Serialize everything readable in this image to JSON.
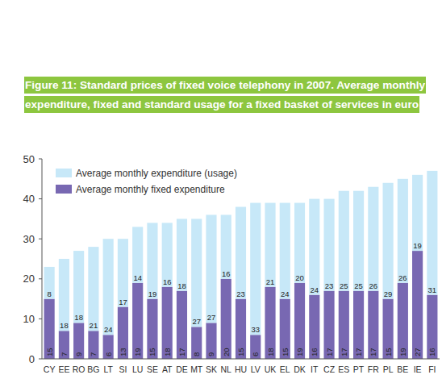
{
  "chart_data": {
    "type": "bar",
    "title": "Figure 11: Standard prices of fixed voice telephony in 2007. Average monthly expenditure, fixed and standard usage for a fixed basket of services in euro",
    "stacked": true,
    "data_labels": true,
    "grid": false,
    "legend": "upper left",
    "categories": [
      "CY",
      "EE",
      "RO",
      "BG",
      "LT",
      "SI",
      "LU",
      "SE",
      "AT",
      "DE",
      "MT",
      "SK",
      "NL",
      "HU",
      "LV",
      "UK",
      "EL",
      "DK",
      "IT",
      "CZ",
      "ES",
      "PT",
      "FR",
      "PL",
      "BE",
      "IE",
      "FI"
    ],
    "series": [
      {
        "name": "Average monthly fixed expenditure",
        "color": "#7868b2",
        "values": [
          15,
          7,
          9,
          7,
          6,
          13,
          19,
          15,
          18,
          17,
          8,
          9,
          20,
          15,
          6,
          18,
          15,
          19,
          16,
          17,
          17,
          17,
          17,
          15,
          19,
          27,
          16
        ]
      },
      {
        "name": "Average monthly expenditure (usage)",
        "color": "#c7e8f8",
        "values": [
          8,
          18,
          18,
          21,
          24,
          17,
          14,
          19,
          16,
          18,
          27,
          27,
          16,
          23,
          33,
          21,
          24,
          20,
          24,
          23,
          25,
          25,
          26,
          29,
          26,
          19,
          31
        ]
      }
    ],
    "ylim": [
      0,
      50
    ],
    "yticks": [
      0,
      10,
      20,
      30,
      40,
      50
    ]
  }
}
